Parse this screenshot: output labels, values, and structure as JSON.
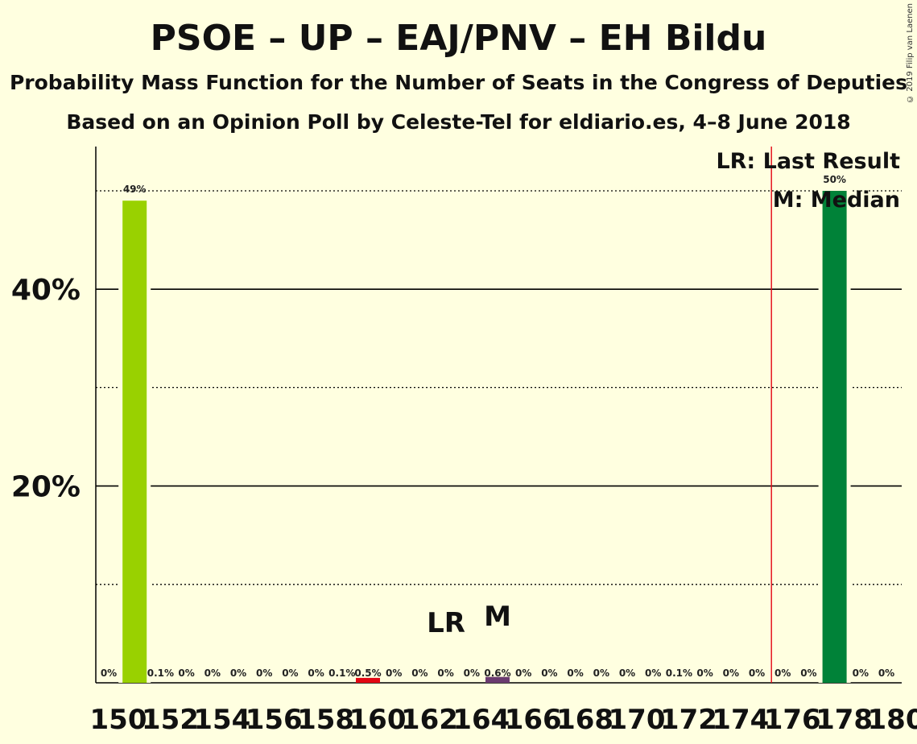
{
  "chart_data": {
    "type": "bar",
    "title": "PSOE – UP – EAJ/PNV – EH Bildu",
    "subtitle": "Probability Mass Function for the Number of Seats in the Congress of Deputies",
    "subtitle2": "Based on an Opinion Poll by Celeste-Tel for eldiario.es, 4–8 June 2018",
    "copyright": "© 2019 Filip van Laenen",
    "x": [
      150,
      151,
      152,
      153,
      154,
      155,
      156,
      157,
      158,
      159,
      160,
      161,
      162,
      163,
      164,
      165,
      166,
      167,
      168,
      169,
      170,
      171,
      172,
      173,
      174,
      175,
      176,
      177,
      178,
      179,
      180
    ],
    "values": [
      0,
      49,
      0.1,
      0,
      0,
      0,
      0,
      0,
      0,
      0.1,
      0.5,
      0,
      0,
      0,
      0,
      0.6,
      0,
      0,
      0,
      0,
      0,
      0,
      0.1,
      0,
      0,
      0,
      0,
      0,
      50,
      0,
      0
    ],
    "data_labels": [
      "0%",
      "49%",
      "0.1%",
      "0%",
      "0%",
      "0%",
      "0%",
      "0%",
      "0%",
      "0.1%",
      "0.5%",
      "0%",
      "0%",
      "0%",
      "0%",
      "0.6%",
      "0%",
      "0%",
      "0%",
      "0%",
      "0%",
      "0%",
      "0.1%",
      "0%",
      "0%",
      "0%",
      "0%",
      "0%",
      "50%",
      "0%",
      "0%"
    ],
    "bar_colors": {
      "151": "#99D100",
      "160": "#E30613",
      "165": "#6B3B70",
      "178": "#008238"
    },
    "x_tick_labels": [
      "150",
      "152",
      "154",
      "156",
      "158",
      "160",
      "162",
      "164",
      "166",
      "168",
      "170",
      "172",
      "174",
      "176",
      "178",
      "180"
    ],
    "y_tick_labels": [
      "20%",
      "40%"
    ],
    "y_ticks": [
      20,
      40
    ],
    "y_minor_ticks": [
      10,
      30,
      50
    ],
    "ylim": [
      0,
      54
    ],
    "last_result": {
      "seats": 176,
      "label": "LR",
      "color": "#E30613"
    },
    "median": {
      "seats": 165,
      "label": "M"
    },
    "legend": {
      "lr": "LR: Last Result",
      "m": "M: Median",
      "position": "top-right"
    }
  }
}
